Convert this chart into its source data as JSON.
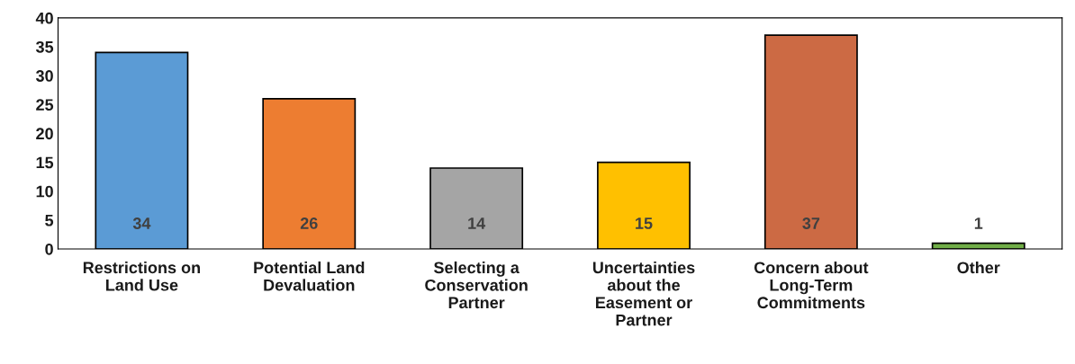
{
  "chart_data": {
    "type": "bar",
    "categories": [
      "Restrictions on\nLand Use",
      "Potential Land\nDevaluation",
      "Selecting a\nConservation\nPartner",
      "Uncertainties\nabout the\nEasement or\nPartner",
      "Concern about\nLong-Term\nCommitments",
      "Other"
    ],
    "values": [
      34,
      26,
      14,
      15,
      37,
      1
    ],
    "colors": [
      "#5b9bd5",
      "#ed7d31",
      "#a5a5a5",
      "#ffc000",
      "#cc6a44",
      "#70ad47"
    ],
    "ylim": [
      0,
      40
    ],
    "yticks": [
      0,
      5,
      10,
      15,
      20,
      25,
      30,
      35,
      40
    ],
    "data_labels": true,
    "grid": false,
    "legend": false
  }
}
